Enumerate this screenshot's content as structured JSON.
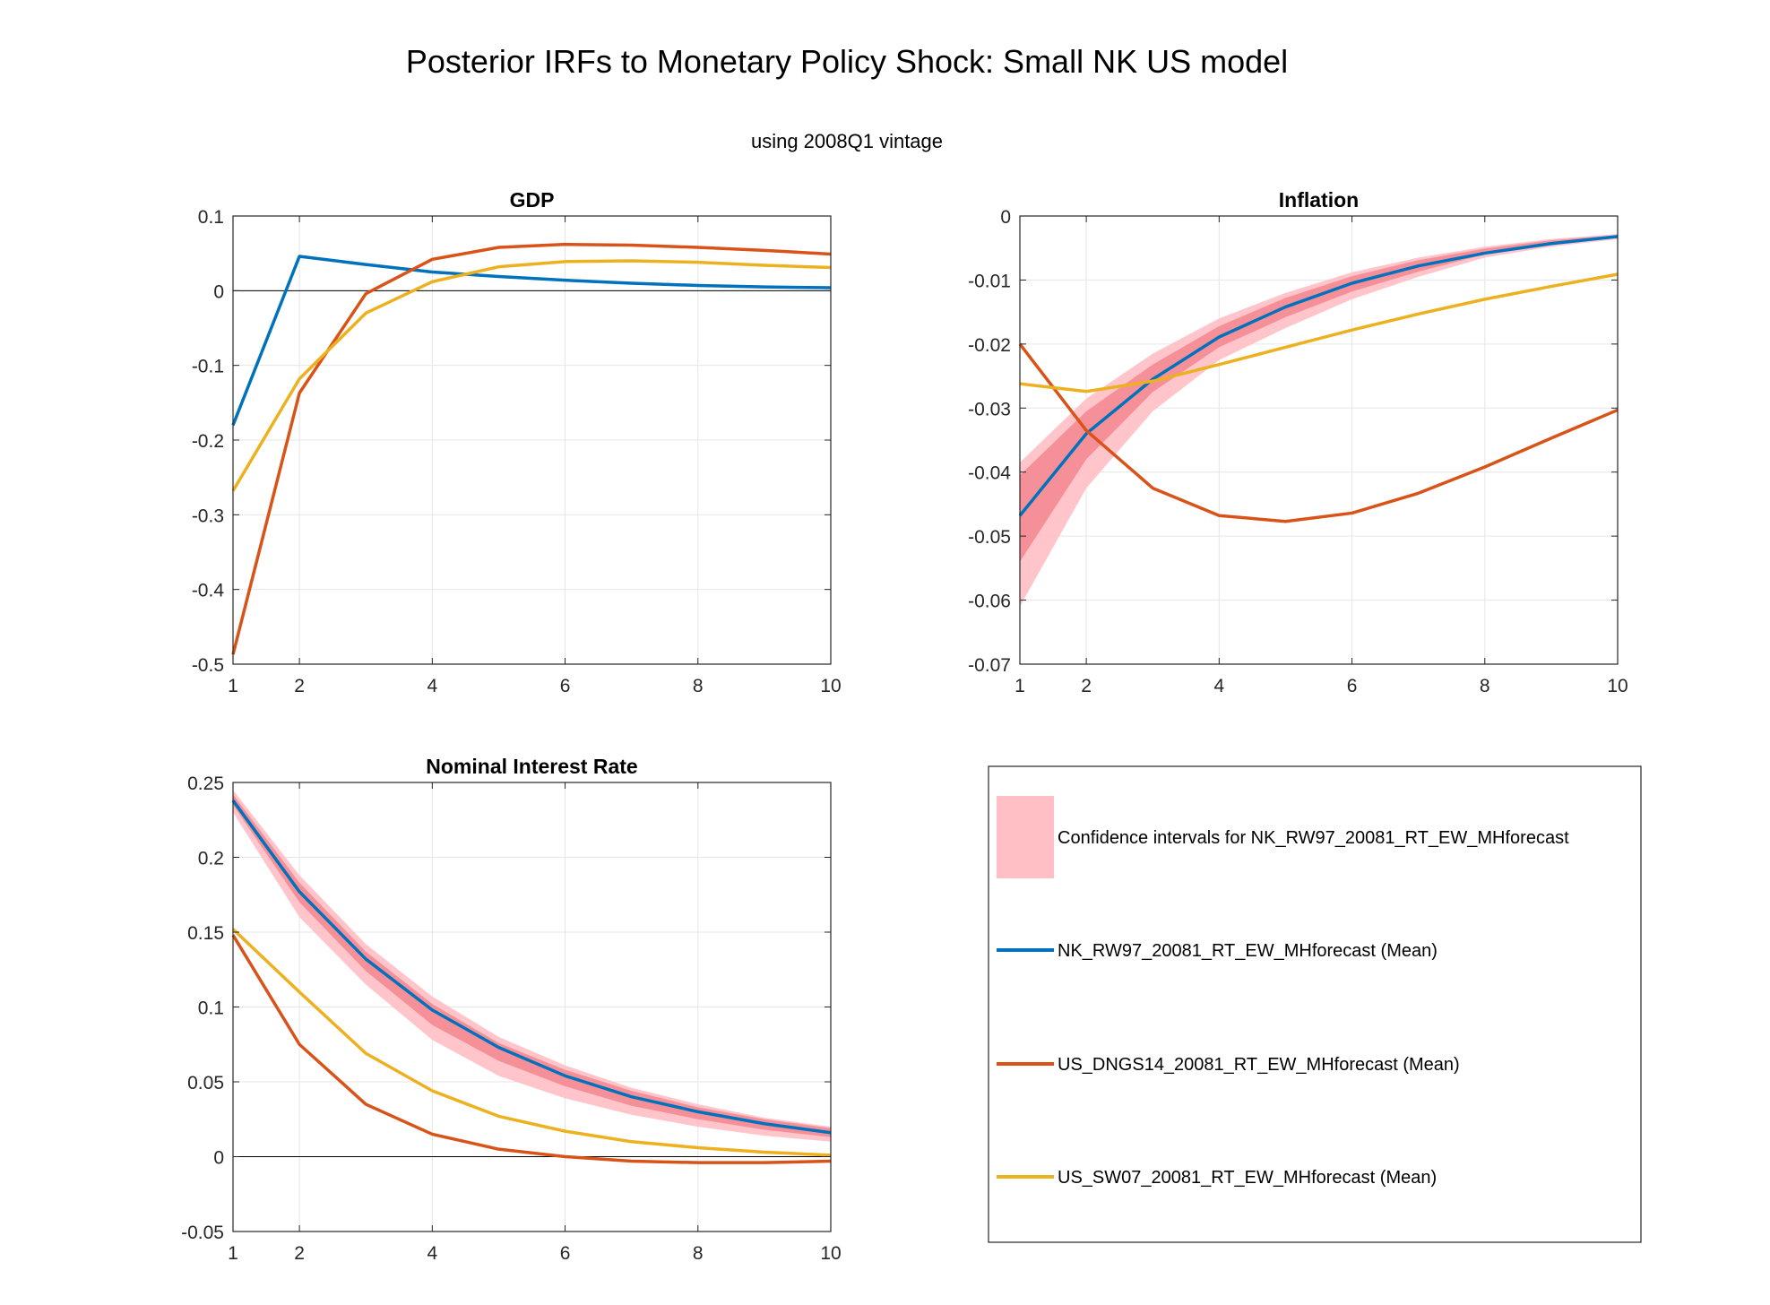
{
  "figure": {
    "title": "Posterior IRFs to Monetary Policy Shock: Small NK US model",
    "subtitle": "using 2008Q1 vintage"
  },
  "colors": {
    "ci_light": "#ffbfc4",
    "ci_dark": "#f58a92",
    "blue": "#0072bd",
    "orange": "#d95319",
    "yellow": "#edb120",
    "grid": "#e6e6e6",
    "axis": "#262626"
  },
  "legend": {
    "entries": [
      {
        "key": "ci",
        "label": "Confidence intervals for NK_RW97_20081_RT_EW_MHforecast"
      },
      {
        "key": "blue",
        "label": "NK_RW97_20081_RT_EW_MHforecast (Mean)"
      },
      {
        "key": "orange",
        "label": "US_DNGS14_20081_RT_EW_MHforecast (Mean)"
      },
      {
        "key": "yellow",
        "label": "US_SW07_20081_RT_EW_MHforecast (Mean)"
      }
    ]
  },
  "chart_data": [
    {
      "type": "line",
      "title": "GDP",
      "x": [
        1,
        2,
        3,
        4,
        5,
        6,
        7,
        8,
        9,
        10
      ],
      "xticks": [
        1,
        2,
        4,
        6,
        8,
        10
      ],
      "xlim": [
        1,
        10
      ],
      "ylim": [
        -0.5,
        0.1
      ],
      "yticks": [
        -0.5,
        -0.4,
        -0.3,
        -0.2,
        -0.1,
        0,
        0.1
      ],
      "yticklabels": [
        "-0.5",
        "-0.4",
        "-0.3",
        "-0.2",
        "-0.1",
        "0",
        "0.1"
      ],
      "zero_line": true,
      "grid": true,
      "bands": [
        {
          "lower": [
            -0.185,
            0.044,
            0.033,
            0.024,
            0.017,
            0.013,
            0.009,
            0.007,
            0.005,
            0.003
          ],
          "upper": [
            -0.175,
            0.048,
            0.036,
            0.027,
            0.02,
            0.015,
            0.011,
            0.008,
            0.006,
            0.005
          ],
          "shade": "light"
        }
      ],
      "series": [
        {
          "color": "blue",
          "values": [
            -0.18,
            0.046,
            0.035,
            0.025,
            0.019,
            0.014,
            0.01,
            0.007,
            0.005,
            0.004
          ]
        },
        {
          "color": "orange",
          "values": [
            -0.487,
            -0.137,
            -0.004,
            0.042,
            0.058,
            0.062,
            0.061,
            0.058,
            0.054,
            0.049
          ]
        },
        {
          "color": "yellow",
          "values": [
            -0.268,
            -0.118,
            -0.03,
            0.012,
            0.032,
            0.039,
            0.04,
            0.038,
            0.034,
            0.031
          ]
        }
      ]
    },
    {
      "type": "line",
      "title": "Inflation",
      "x": [
        1,
        2,
        3,
        4,
        5,
        6,
        7,
        8,
        9,
        10
      ],
      "xticks": [
        1,
        2,
        4,
        6,
        8,
        10
      ],
      "xlim": [
        1,
        10
      ],
      "ylim": [
        -0.07,
        0
      ],
      "yticks": [
        -0.07,
        -0.06,
        -0.05,
        -0.04,
        -0.03,
        -0.02,
        -0.01,
        0
      ],
      "yticklabels": [
        "-0.07",
        "-0.06",
        "-0.05",
        "-0.04",
        "-0.03",
        "-0.02",
        "-0.01",
        "0"
      ],
      "zero_line": false,
      "grid": true,
      "bands": [
        {
          "lower": [
            -0.061,
            -0.0425,
            -0.0305,
            -0.0225,
            -0.0175,
            -0.013,
            -0.0095,
            -0.0065,
            -0.0048,
            -0.0036
          ],
          "upper": [
            -0.0385,
            -0.0285,
            -0.0215,
            -0.016,
            -0.012,
            -0.0088,
            -0.0065,
            -0.0048,
            -0.0036,
            -0.0028
          ],
          "shade": "light"
        },
        {
          "lower": [
            -0.054,
            -0.038,
            -0.0275,
            -0.0205,
            -0.0158,
            -0.0118,
            -0.0087,
            -0.006,
            -0.0045,
            -0.0034
          ],
          "upper": [
            -0.0405,
            -0.0305,
            -0.0232,
            -0.0172,
            -0.0128,
            -0.0094,
            -0.0069,
            -0.0051,
            -0.0038,
            -0.003
          ],
          "shade": "dark"
        }
      ],
      "series": [
        {
          "color": "blue",
          "values": [
            -0.0468,
            -0.034,
            -0.0255,
            -0.0189,
            -0.0142,
            -0.0105,
            -0.0078,
            -0.0058,
            -0.0043,
            -0.0032
          ]
        },
        {
          "color": "orange",
          "values": [
            -0.02,
            -0.0335,
            -0.0425,
            -0.0468,
            -0.0477,
            -0.0464,
            -0.0433,
            -0.0392,
            -0.0347,
            -0.0303
          ]
        },
        {
          "color": "yellow",
          "values": [
            -0.0262,
            -0.0274,
            -0.0258,
            -0.0232,
            -0.0205,
            -0.0178,
            -0.0153,
            -0.013,
            -0.011,
            -0.0091
          ]
        }
      ]
    },
    {
      "type": "line",
      "title": "Nominal Interest Rate",
      "x": [
        1,
        2,
        3,
        4,
        5,
        6,
        7,
        8,
        9,
        10
      ],
      "xticks": [
        1,
        2,
        4,
        6,
        8,
        10
      ],
      "xlim": [
        1,
        10
      ],
      "ylim": [
        -0.05,
        0.25
      ],
      "yticks": [
        -0.05,
        0,
        0.05,
        0.1,
        0.15,
        0.2,
        0.25
      ],
      "yticklabels": [
        "-0.05",
        "0",
        "0.05",
        "0.1",
        "0.15",
        "0.2",
        "0.25"
      ],
      "zero_line": true,
      "grid": true,
      "bands": [
        {
          "lower": [
            0.23,
            0.16,
            0.115,
            0.078,
            0.054,
            0.039,
            0.028,
            0.02,
            0.014,
            0.01
          ],
          "upper": [
            0.245,
            0.188,
            0.142,
            0.107,
            0.08,
            0.061,
            0.046,
            0.035,
            0.026,
            0.02
          ],
          "shade": "light"
        },
        {
          "lower": [
            0.235,
            0.17,
            0.124,
            0.088,
            0.064,
            0.047,
            0.034,
            0.025,
            0.018,
            0.013
          ],
          "upper": [
            0.242,
            0.183,
            0.137,
            0.102,
            0.076,
            0.058,
            0.044,
            0.033,
            0.025,
            0.019
          ],
          "shade": "dark"
        }
      ],
      "series": [
        {
          "color": "blue",
          "values": [
            0.238,
            0.177,
            0.132,
            0.098,
            0.073,
            0.054,
            0.04,
            0.03,
            0.022,
            0.016
          ]
        },
        {
          "color": "orange",
          "values": [
            0.148,
            0.075,
            0.035,
            0.015,
            0.005,
            0.0,
            -0.003,
            -0.004,
            -0.004,
            -0.003
          ]
        },
        {
          "color": "yellow",
          "values": [
            0.152,
            0.11,
            0.069,
            0.044,
            0.027,
            0.017,
            0.01,
            0.006,
            0.003,
            0.001
          ]
        }
      ]
    }
  ]
}
